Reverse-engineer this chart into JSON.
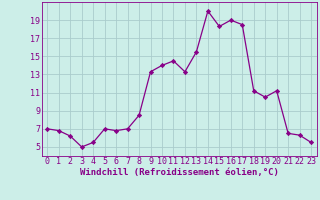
{
  "x": [
    0,
    1,
    2,
    3,
    4,
    5,
    6,
    7,
    8,
    9,
    10,
    11,
    12,
    13,
    14,
    15,
    16,
    17,
    18,
    19,
    20,
    21,
    22,
    23
  ],
  "y": [
    7.0,
    6.8,
    6.2,
    5.0,
    5.5,
    7.0,
    6.8,
    7.0,
    8.5,
    13.3,
    14.0,
    14.5,
    13.3,
    15.5,
    20.0,
    18.3,
    19.0,
    18.5,
    11.2,
    10.5,
    11.2,
    6.5,
    6.3,
    5.5
  ],
  "line_color": "#880088",
  "marker": "D",
  "marker_size": 2.2,
  "bg_color": "#cceee8",
  "grid_color": "#aacccc",
  "xlabel": "Windchill (Refroidissement éolien,°C)",
  "xlabel_fontsize": 6.5,
  "tick_fontsize": 6.0,
  "xlim": [
    -0.5,
    23.5
  ],
  "ylim": [
    4.0,
    21.0
  ],
  "yticks": [
    5,
    7,
    9,
    11,
    13,
    15,
    17,
    19
  ],
  "xticks": [
    0,
    1,
    2,
    3,
    4,
    5,
    6,
    7,
    8,
    9,
    10,
    11,
    12,
    13,
    14,
    15,
    16,
    17,
    18,
    19,
    20,
    21,
    22,
    23
  ]
}
